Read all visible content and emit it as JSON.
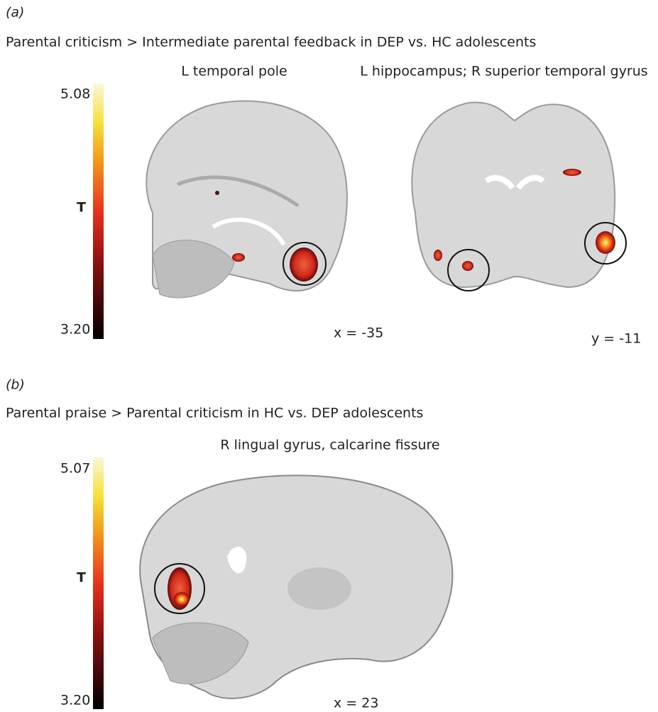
{
  "panels": [
    {
      "label": "(a)",
      "title": "Parental criticism > Intermediate parental feedback in DEP vs. HC adolescents",
      "colorbar": {
        "max": "5.08",
        "name": "T",
        "min": "3.20"
      },
      "views": [
        {
          "caption": "L temporal pole",
          "coordinate": "x = -35"
        },
        {
          "caption": "L hippocampus; R superior temporal gyrus",
          "coordinate": "y = -11"
        }
      ]
    },
    {
      "label": "(b)",
      "title": "Parental praise > Parental criticism in HC vs. DEP adolescents",
      "colorbar": {
        "max": "5.07",
        "name": "T",
        "min": "3.20"
      },
      "views": [
        {
          "caption": "R lingual gyrus, calcarine fissure",
          "coordinate": "x = 23"
        }
      ]
    }
  ]
}
